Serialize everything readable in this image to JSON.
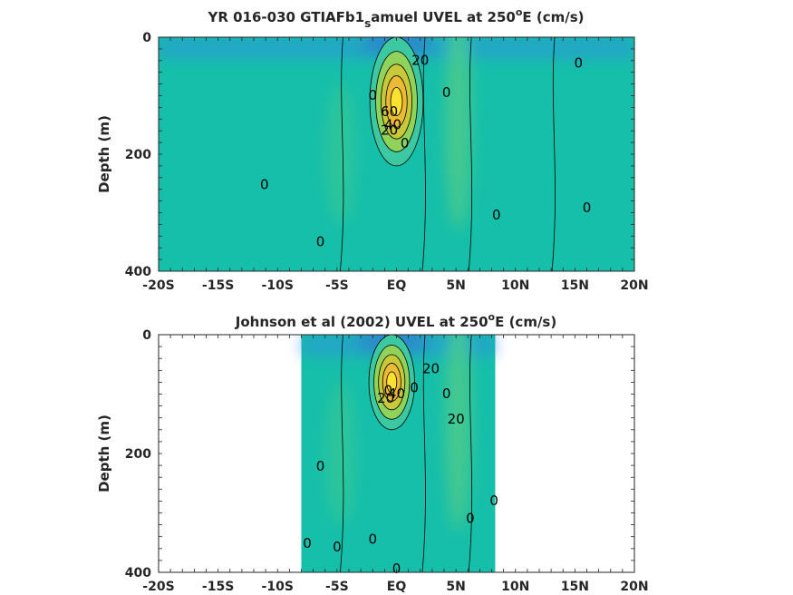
{
  "chart_data": [
    {
      "type": "heatmap",
      "title_main": "YR 016-030 GTIAFb1",
      "title_sub": "s",
      "title_rest": "amuel UVEL at 250",
      "title_sup": "o",
      "title_end": "E (cm/s)",
      "xlabel": "",
      "ylabel": "Depth (m)",
      "x_ticks": [
        "-20S",
        "-15S",
        "-10S",
        "-5S",
        "EQ",
        "5N",
        "10N",
        "15N",
        "20N"
      ],
      "x_tick_values": [
        -20,
        -15,
        -10,
        -5,
        0,
        5,
        10,
        15,
        20
      ],
      "y_ticks": [
        "0",
        "200",
        "400"
      ],
      "y_tick_values": [
        0,
        200,
        400
      ],
      "xlim": [
        -20,
        20
      ],
      "ylim": [
        0,
        400
      ],
      "data_extent": [
        -20,
        20
      ],
      "jets": [
        {
          "lat": 0.0,
          "depth": 110,
          "value": 100,
          "sx": 0.7,
          "sd": 55
        }
      ],
      "contour_labels": [
        {
          "text": "20",
          "lat": 2.0,
          "depth": 40
        },
        {
          "text": "0",
          "lat": -2.0,
          "depth": 100
        },
        {
          "text": "60",
          "lat": -0.6,
          "depth": 128
        },
        {
          "text": "40",
          "lat": -0.3,
          "depth": 150
        },
        {
          "text": "20",
          "lat": -0.6,
          "depth": 160
        },
        {
          "text": "0",
          "lat": 4.2,
          "depth": 95
        },
        {
          "text": "0",
          "lat": 0.7,
          "depth": 182
        },
        {
          "text": "0",
          "lat": 15.3,
          "depth": 45
        },
        {
          "text": "0",
          "lat": -11.1,
          "depth": 253
        },
        {
          "text": "0",
          "lat": -6.4,
          "depth": 350
        },
        {
          "text": "0",
          "lat": 8.4,
          "depth": 305
        },
        {
          "text": "0",
          "lat": 16.0,
          "depth": 292
        }
      ]
    },
    {
      "type": "heatmap",
      "title_main": "Johnson et al (2002) UVEL at 250",
      "title_sup": "o",
      "title_end": "E (cm/s)",
      "xlabel": "",
      "ylabel": "Depth (m)",
      "x_ticks": [
        "-20S",
        "-15S",
        "-10S",
        "-5S",
        "EQ",
        "5N",
        "10N",
        "15N",
        "20N"
      ],
      "x_tick_values": [
        -20,
        -15,
        -10,
        -5,
        0,
        5,
        10,
        15,
        20
      ],
      "y_ticks": [
        "0",
        "200",
        "400"
      ],
      "y_tick_values": [
        0,
        200,
        400
      ],
      "xlim": [
        -20,
        20
      ],
      "ylim": [
        0,
        400
      ],
      "data_extent": [
        -8,
        8.3
      ],
      "jets": [
        {
          "lat": -0.4,
          "depth": 80,
          "value": 110,
          "sx": 0.6,
          "sd": 40
        }
      ],
      "contour_labels": [
        {
          "text": "20",
          "lat": 2.9,
          "depth": 58
        },
        {
          "text": "0",
          "lat": -0.7,
          "depth": 95
        },
        {
          "text": "40",
          "lat": 0.0,
          "depth": 100
        },
        {
          "text": "20",
          "lat": -0.9,
          "depth": 108
        },
        {
          "text": "0",
          "lat": 1.5,
          "depth": 90
        },
        {
          "text": "0",
          "lat": 4.2,
          "depth": 100
        },
        {
          "text": "20",
          "lat": 5.0,
          "depth": 143
        },
        {
          "text": "0",
          "lat": -6.4,
          "depth": 222
        },
        {
          "text": "0",
          "lat": 8.2,
          "depth": 280
        },
        {
          "text": "0",
          "lat": 6.2,
          "depth": 310
        },
        {
          "text": "0",
          "lat": -7.5,
          "depth": 352
        },
        {
          "text": "0",
          "lat": -5.0,
          "depth": 358
        },
        {
          "text": "0",
          "lat": -2.0,
          "depth": 345
        },
        {
          "text": "0",
          "lat": 0.0,
          "depth": 395
        }
      ]
    }
  ]
}
